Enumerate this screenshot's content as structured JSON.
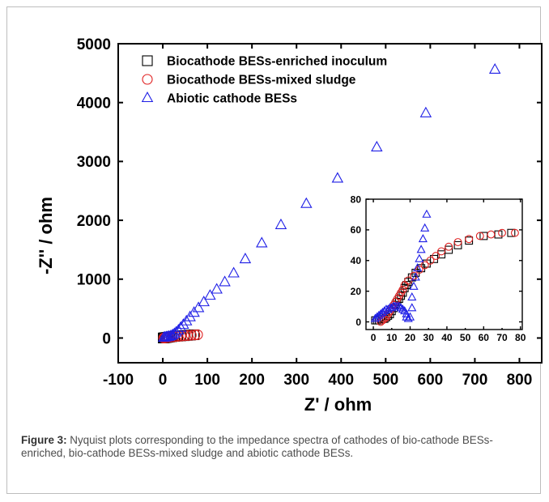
{
  "caption": {
    "label": "Figure 3:",
    "text": " Nyquist plots corresponding to the impedance spectra of cathodes of bio-cathode BESs-enriched, bio-cathode BESs-mixed sludge and abiotic cathode BESs."
  },
  "chart_data": [
    {
      "type": "scatter",
      "xlabel": "Z' / ohm",
      "ylabel": "-Z'' / ohm",
      "xlim": [
        -100,
        850
      ],
      "ylim": [
        -420,
        5000
      ],
      "xticks": [
        -100,
        0,
        100,
        200,
        300,
        400,
        500,
        600,
        700,
        800
      ],
      "yticks": [
        0,
        1000,
        2000,
        3000,
        4000,
        5000
      ],
      "grid": false,
      "legend_position": "top-left",
      "series": [
        {
          "name": "Biocathode BESs-enriched inoculum",
          "marker": "square",
          "color": "#000000",
          "points": [
            [
              1,
              0
            ],
            [
              2,
              2
            ],
            [
              3,
              3
            ],
            [
              5,
              5
            ],
            [
              7,
              8
            ],
            [
              9,
              10
            ],
            [
              12,
              13
            ],
            [
              15,
              17
            ],
            [
              20,
              22
            ],
            [
              26,
              28
            ],
            [
              33,
              32
            ],
            [
              40,
              36
            ],
            [
              48,
              40
            ],
            [
              55,
              45
            ],
            [
              62,
              50
            ],
            [
              70,
              55
            ]
          ]
        },
        {
          "name": "Biocathode BESs-mixed sludge",
          "marker": "circle",
          "color": "#e02020",
          "points": [
            [
              2,
              0
            ],
            [
              4,
              2
            ],
            [
              7,
              5
            ],
            [
              10,
              9
            ],
            [
              14,
              13
            ],
            [
              19,
              17
            ],
            [
              25,
              22
            ],
            [
              32,
              27
            ],
            [
              40,
              32
            ],
            [
              48,
              37
            ],
            [
              56,
              42
            ],
            [
              64,
              47
            ],
            [
              72,
              52
            ],
            [
              78,
              56
            ]
          ]
        },
        {
          "name": "Abiotic cathode BESs",
          "marker": "triangle",
          "color": "#1e1ee6",
          "points": [
            [
              2,
              5
            ],
            [
              5,
              10
            ],
            [
              8,
              15
            ],
            [
              11,
              20
            ],
            [
              14,
              25
            ],
            [
              18,
              35
            ],
            [
              22,
              50
            ],
            [
              26,
              70
            ],
            [
              30,
              95
            ],
            [
              35,
              130
            ],
            [
              40,
              175
            ],
            [
              46,
              225
            ],
            [
              53,
              285
            ],
            [
              61,
              355
            ],
            [
              70,
              430
            ],
            [
              80,
              510
            ],
            [
              92,
              610
            ],
            [
              106,
              720
            ],
            [
              121,
              825
            ],
            [
              139,
              950
            ],
            [
              159,
              1100
            ],
            [
              185,
              1340
            ],
            [
              222,
              1610
            ],
            [
              265,
              1920
            ],
            [
              322,
              2280
            ],
            [
              392,
              2710
            ],
            [
              480,
              3240
            ],
            [
              590,
              3820
            ],
            [
              745,
              4560
            ]
          ]
        }
      ]
    },
    {
      "type": "scatter",
      "inset": true,
      "xlim": [
        -4,
        81
      ],
      "ylim": [
        -5,
        80
      ],
      "xticks": [
        0,
        20,
        40,
        60,
        80
      ],
      "xtick_labels": [
        "0",
        "20",
        "40",
        "60",
        "80"
      ],
      "minor_xtick_labels": [
        "10",
        "30",
        "50",
        "70"
      ],
      "yticks": [
        0,
        20,
        40,
        60,
        80
      ],
      "grid": false,
      "series": [
        {
          "name": "Biocathode BESs-enriched inoculum",
          "marker": "square",
          "color": "#000000",
          "points": [
            [
              1,
              1
            ],
            [
              2,
              1
            ],
            [
              3,
              1
            ],
            [
              4,
              2
            ],
            [
              5,
              2
            ],
            [
              6,
              2
            ],
            [
              7,
              3
            ],
            [
              8,
              4
            ],
            [
              9,
              5
            ],
            [
              10,
              7
            ],
            [
              11,
              9
            ],
            [
              12,
              11
            ],
            [
              13,
              13
            ],
            [
              14,
              15
            ],
            [
              15,
              17
            ],
            [
              16,
              19
            ],
            [
              17,
              22
            ],
            [
              18,
              24
            ],
            [
              19,
              26
            ],
            [
              21,
              29
            ],
            [
              23,
              32
            ],
            [
              26,
              35
            ],
            [
              29,
              38
            ],
            [
              33,
              41
            ],
            [
              37,
              44
            ],
            [
              41,
              47
            ],
            [
              46,
              50
            ],
            [
              52,
              53
            ],
            [
              60,
              56
            ],
            [
              68,
              57
            ],
            [
              75,
              58
            ]
          ]
        },
        {
          "name": "Biocathode BESs-mixed sludge",
          "marker": "circle",
          "color": "#e02020",
          "points": [
            [
              4,
              0
            ],
            [
              5,
              1
            ],
            [
              6,
              2
            ],
            [
              7,
              3
            ],
            [
              8,
              5
            ],
            [
              9,
              7
            ],
            [
              10,
              9
            ],
            [
              11,
              11
            ],
            [
              12,
              13
            ],
            [
              13,
              15
            ],
            [
              14,
              17
            ],
            [
              15,
              19
            ],
            [
              16,
              21
            ],
            [
              17,
              24
            ],
            [
              19,
              27
            ],
            [
              22,
              30
            ],
            [
              25,
              34
            ],
            [
              28,
              37
            ],
            [
              31,
              40
            ],
            [
              34,
              43
            ],
            [
              37,
              46
            ],
            [
              41,
              49
            ],
            [
              46,
              52
            ],
            [
              52,
              54
            ],
            [
              58,
              56
            ],
            [
              64,
              57
            ],
            [
              70,
              58
            ],
            [
              77,
              58
            ]
          ]
        },
        {
          "name": "Abiotic cathode BESs",
          "marker": "triangle",
          "color": "#1e1ee6",
          "points": [
            [
              1,
              2
            ],
            [
              2,
              3
            ],
            [
              3,
              4
            ],
            [
              4,
              5
            ],
            [
              5,
              6
            ],
            [
              6,
              7
            ],
            [
              7,
              8
            ],
            [
              8,
              8
            ],
            [
              9,
              9
            ],
            [
              10,
              9
            ],
            [
              11,
              10
            ],
            [
              12,
              10
            ],
            [
              13,
              10
            ],
            [
              14,
              10
            ],
            [
              15,
              9
            ],
            [
              16,
              8
            ],
            [
              17,
              7
            ],
            [
              18,
              5
            ],
            [
              18,
              3
            ],
            [
              19,
              2
            ],
            [
              20,
              3
            ],
            [
              21,
              9
            ],
            [
              21,
              16
            ],
            [
              22,
              23
            ],
            [
              23,
              29
            ],
            [
              24,
              35
            ],
            [
              25,
              41
            ],
            [
              26,
              47
            ],
            [
              27,
              54
            ],
            [
              28,
              61
            ],
            [
              29,
              70
            ]
          ]
        }
      ]
    }
  ]
}
